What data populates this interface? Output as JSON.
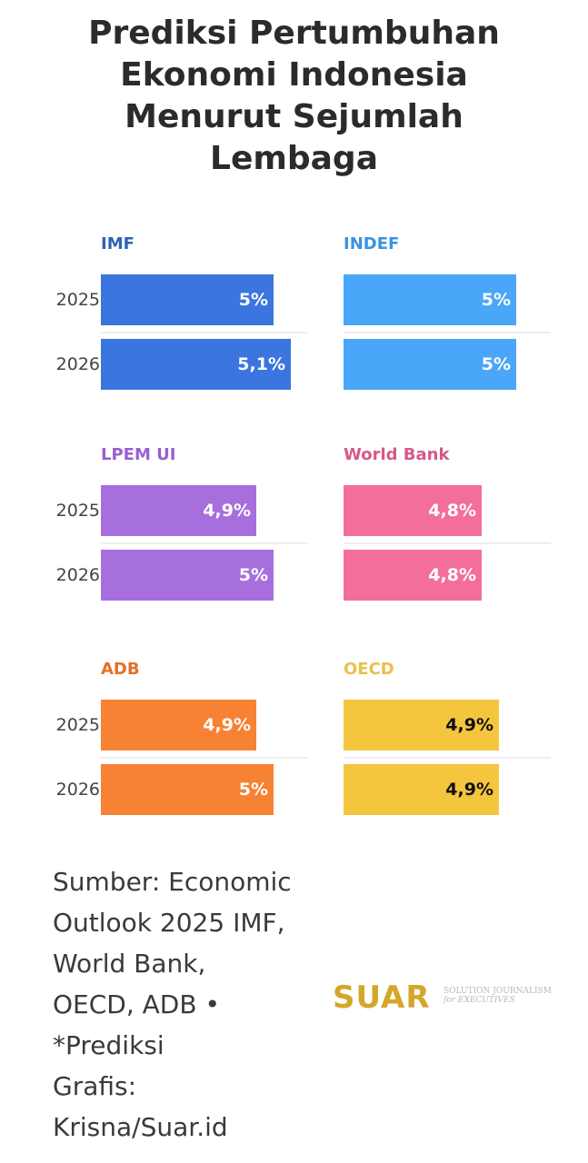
{
  "title_lines": [
    "Prediksi Pertumbuhan",
    "Ekonomi Indonesia",
    "Menurut Sejumlah",
    "Lembaga"
  ],
  "chart_data": {
    "type": "bar",
    "orientation": "horizontal",
    "title": "Prediksi Pertumbuhan Ekonomi Indonesia Menurut Sejumlah Lembaga",
    "categories": [
      "2025",
      "2026"
    ],
    "unit": "%",
    "xlim": [
      4,
      5.1
    ],
    "series": [
      {
        "name": "IMF",
        "color": "#3a75e0",
        "title_color": "#2f62b8",
        "label_color": "#ffffff",
        "values": [
          5.0,
          5.1
        ],
        "labels": [
          "5%",
          "5,1%"
        ]
      },
      {
        "name": "INDEF",
        "color": "#4aa6f8",
        "title_color": "#3a93e0",
        "label_color": "#ffffff",
        "values": [
          5.0,
          5.0
        ],
        "labels": [
          "5%",
          "5%"
        ]
      },
      {
        "name": "LPEM UI",
        "color": "#a76fdd",
        "title_color": "#9a5fd0",
        "label_color": "#ffffff",
        "values": [
          4.9,
          5.0
        ],
        "labels": [
          "4,9%",
          "5%"
        ]
      },
      {
        "name": "World Bank",
        "color": "#f46e9d",
        "title_color": "#d8588a",
        "label_color": "#ffffff",
        "values": [
          4.8,
          4.8
        ],
        "labels": [
          "4,8%",
          "4,8%"
        ]
      },
      {
        "name": "ADB",
        "color": "#f78233",
        "title_color": "#e07226",
        "label_color": "#ffffff",
        "values": [
          4.9,
          5.0
        ],
        "labels": [
          "4,9%",
          "5%"
        ]
      },
      {
        "name": "OECD",
        "color": "#f4c63e",
        "title_color": "#e9c04a",
        "label_color": "#111111",
        "values": [
          4.9,
          4.9
        ],
        "labels": [
          "4,9%",
          "4,9%"
        ]
      }
    ]
  },
  "source_lines": [
    "Sumber: Economic",
    "Outlook 2025 IMF,",
    "World Bank,",
    "OECD, ADB •",
    "*Prediksi",
    "Grafis:",
    "Krisna/Suar.id"
  ],
  "logo": {
    "main": "SUAR",
    "sub_line1": "SOLUTION JOURNALISM",
    "sub_line2": "for EXECUTIVES"
  }
}
